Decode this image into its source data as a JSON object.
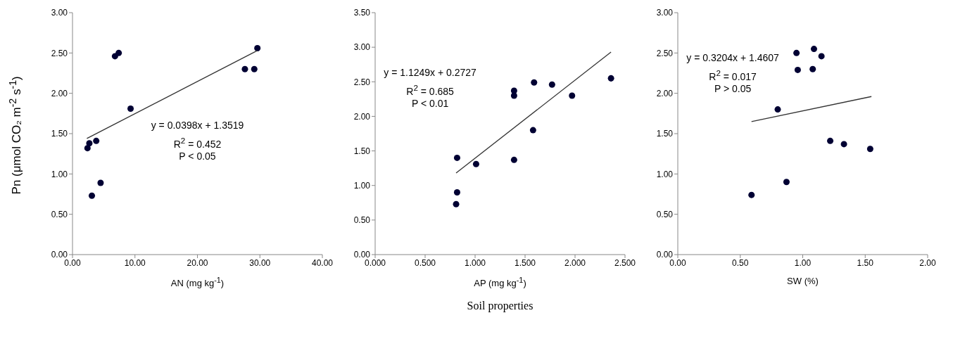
{
  "chart_data": [
    {
      "type": "scatter",
      "xlabel": "AN (mg kg$^{-1}$)",
      "ylabel": "Pn (μmol CO₂ m$^{-2}$ s$^{-1}$)",
      "marker": "circle",
      "xlim": [
        0,
        40
      ],
      "xticks": [
        {
          "value": 0,
          "label": "0.00"
        },
        {
          "value": 10,
          "label": "10.00"
        },
        {
          "value": 20,
          "label": "20.00"
        },
        {
          "value": 30,
          "label": "30.00"
        },
        {
          "value": 40,
          "label": "40.00"
        }
      ],
      "ylim": [
        0,
        3
      ],
      "yticks": [
        {
          "value": 0,
          "label": "0.00"
        },
        {
          "value": 0.5,
          "label": "0.50"
        },
        {
          "value": 1,
          "label": "1.00"
        },
        {
          "value": 1.5,
          "label": "1.50"
        },
        {
          "value": 2,
          "label": "2.00"
        },
        {
          "value": 2.5,
          "label": "2.50"
        },
        {
          "value": 3,
          "label": "3.00"
        }
      ],
      "series": [
        {
          "color": "#000033",
          "x": [
            2.4,
            2.7,
            3.8,
            3.1,
            4.5,
            6.8,
            7.4,
            9.3,
            27.6,
            29.1,
            29.6
          ],
          "values": [
            1.32,
            1.38,
            1.41,
            0.73,
            0.89,
            2.46,
            2.5,
            1.81,
            2.3,
            2.3,
            2.56
          ]
        },
        {
          "type": "line",
          "color": "#333333",
          "marker": "none",
          "x": [
            2.3,
            29.6
          ],
          "values": [
            1.44,
            2.53
          ]
        }
      ],
      "annotations": [
        "y = 0.0398x + 1.3519",
        "R$^{2}$ = 0.452",
        "P < 0.05"
      ]
    },
    {
      "type": "scatter",
      "xlabel": "AP (mg kg$^{-1}$)",
      "marker": "circle",
      "xlim": [
        0,
        2.5
      ],
      "xticks": [
        {
          "value": 0,
          "label": "0.000"
        },
        {
          "value": 0.5,
          "label": "0.500"
        },
        {
          "value": 1,
          "label": "1.000"
        },
        {
          "value": 1.5,
          "label": "1.500"
        },
        {
          "value": 2,
          "label": "2.000"
        },
        {
          "value": 2.5,
          "label": "2.500"
        }
      ],
      "ylim": [
        0,
        3.5
      ],
      "yticks": [
        {
          "value": 0,
          "label": "0.00"
        },
        {
          "value": 0.5,
          "label": "0.50"
        },
        {
          "value": 1,
          "label": "1.00"
        },
        {
          "value": 1.5,
          "label": "1.50"
        },
        {
          "value": 2,
          "label": "2.00"
        },
        {
          "value": 2.5,
          "label": "2.50"
        },
        {
          "value": 3,
          "label": "3.00"
        },
        {
          "value": 3.5,
          "label": "3.50"
        }
      ],
      "series": [
        {
          "color": "#000033",
          "x": [
            0.82,
            0.82,
            0.81,
            1.01,
            1.39,
            1.39,
            1.39,
            1.59,
            1.58,
            1.77,
            1.97,
            2.36
          ],
          "values": [
            1.4,
            0.9,
            0.73,
            1.31,
            2.37,
            2.3,
            1.37,
            2.49,
            1.8,
            2.46,
            2.3,
            2.55
          ]
        },
        {
          "type": "line",
          "color": "#333333",
          "marker": "none",
          "x": [
            0.81,
            2.36
          ],
          "values": [
            1.18,
            2.93
          ]
        }
      ],
      "annotations": [
        "y = 1.1249x + 0.2727",
        "R$^{2}$ = 0.685",
        "P < 0.01",
        "Soil properties"
      ]
    },
    {
      "type": "scatter",
      "xlabel": "SW (%)",
      "marker": "circle",
      "xlim": [
        0,
        2
      ],
      "xticks": [
        {
          "value": 0,
          "label": "0.00"
        },
        {
          "value": 0.5,
          "label": "0.50"
        },
        {
          "value": 1,
          "label": "1.00"
        },
        {
          "value": 1.5,
          "label": "1.50"
        },
        {
          "value": 2,
          "label": "2.00"
        }
      ],
      "ylim": [
        0,
        3
      ],
      "yticks": [
        {
          "value": 0,
          "label": "0.00"
        },
        {
          "value": 0.5,
          "label": "0.50"
        },
        {
          "value": 1,
          "label": "1.00"
        },
        {
          "value": 1.5,
          "label": "1.50"
        },
        {
          "value": 2,
          "label": "2.00"
        },
        {
          "value": 2.5,
          "label": "2.50"
        },
        {
          "value": 3,
          "label": "3.00"
        }
      ],
      "series": [
        {
          "color": "#000033",
          "x": [
            0.59,
            0.87,
            0.8,
            0.95,
            0.96,
            1.08,
            1.09,
            1.15,
            1.22,
            1.33,
            1.54
          ],
          "values": [
            0.74,
            0.9,
            1.8,
            2.5,
            2.29,
            2.3,
            2.55,
            2.46,
            1.41,
            1.37,
            1.31
          ]
        },
        {
          "type": "line",
          "color": "#333333",
          "marker": "none",
          "x": [
            0.59,
            1.55
          ],
          "values": [
            1.65,
            1.96
          ]
        }
      ],
      "annotations": [
        "y = 0.3204x + 1.4607",
        "R$^{2}$ = 0.017",
        "P > 0.05"
      ]
    }
  ]
}
